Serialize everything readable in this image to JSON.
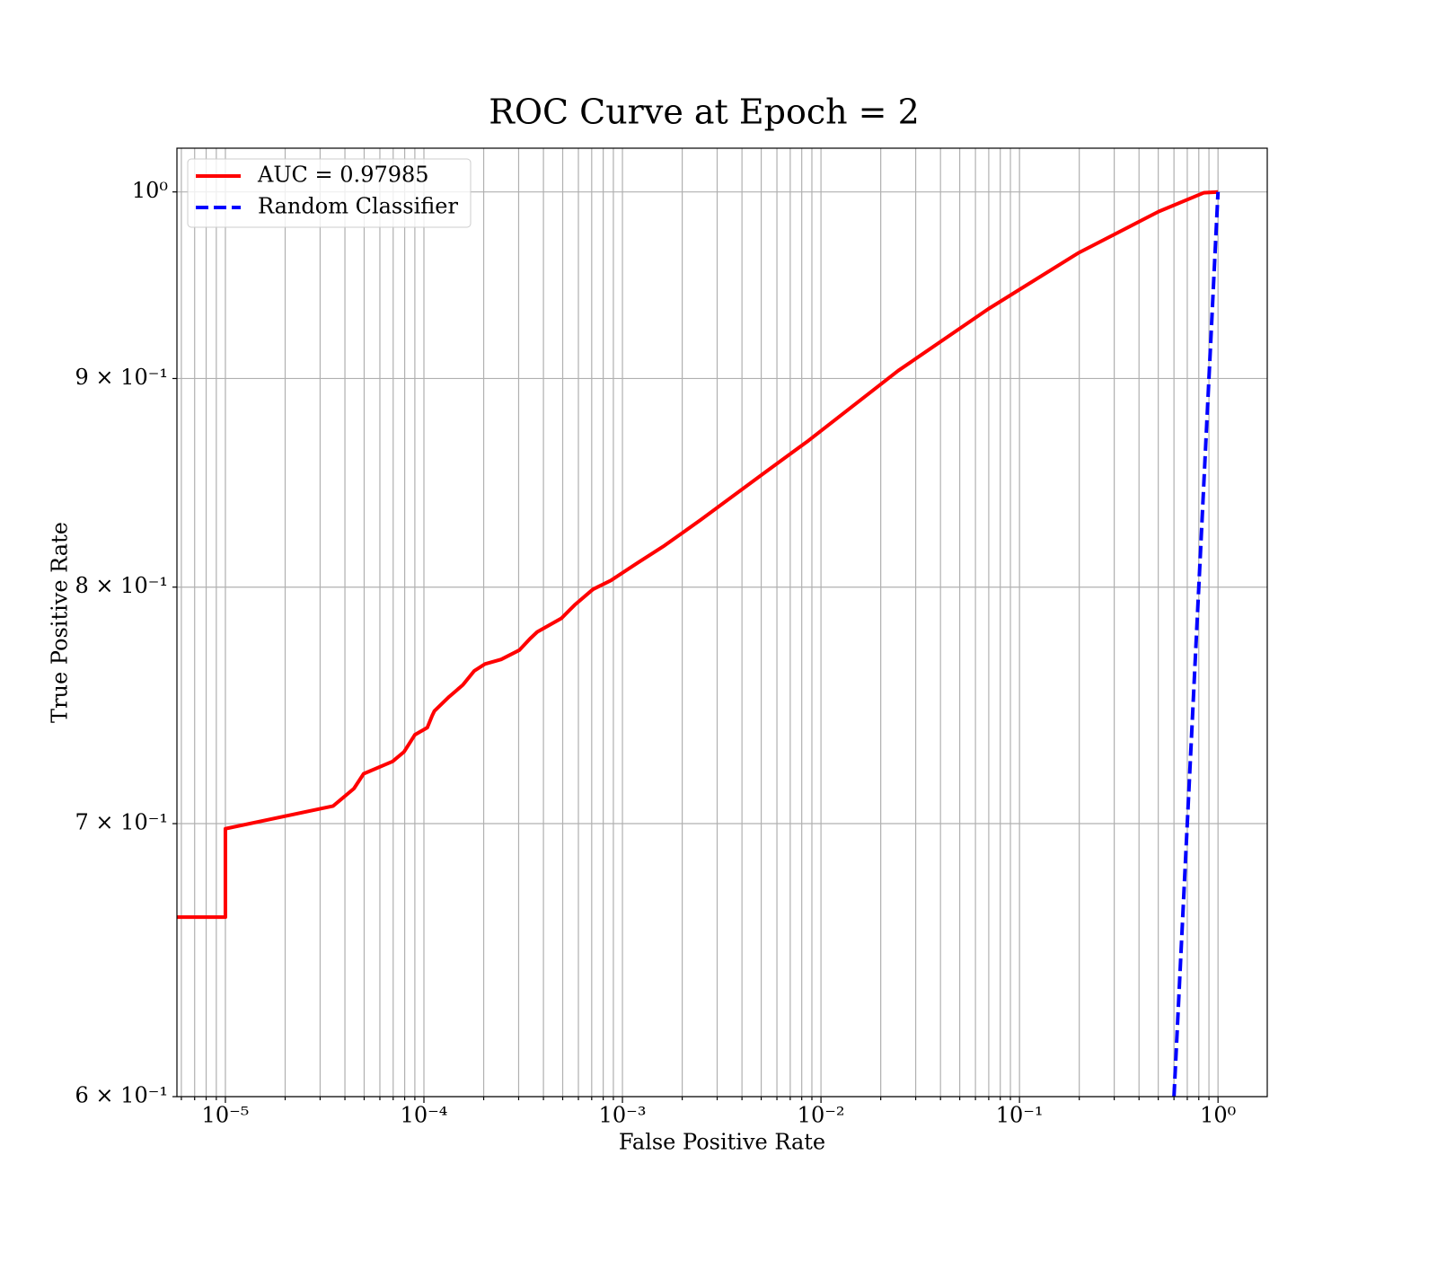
{
  "chart_data": {
    "type": "line",
    "title": "ROC Curve at Epoch = 2",
    "x_label": "False Positive Rate",
    "y_label": "True Positive Rate",
    "xscale": "log",
    "yscale": "log",
    "grid": true,
    "legend": "upper left",
    "xlim": [
      5.7e-06,
      1.77
    ],
    "ylim": [
      0.6,
      1.025
    ],
    "xticks": [
      {
        "value": 1e-05,
        "label": "10⁻⁵"
      },
      {
        "value": 0.0001,
        "label": "10⁻⁴"
      },
      {
        "value": 0.001,
        "label": "10⁻³"
      },
      {
        "value": 0.01,
        "label": "10⁻²"
      },
      {
        "value": 0.1,
        "label": "10⁻¹"
      },
      {
        "value": 1,
        "label": "10⁰"
      }
    ],
    "xminorticks": [
      6e-06,
      7e-06,
      8e-06,
      9e-06,
      2e-05,
      3e-05,
      4e-05,
      5e-05,
      6e-05,
      7e-05,
      8e-05,
      9e-05,
      0.0002,
      0.0003,
      0.0004,
      0.0005,
      0.0006,
      0.0007,
      0.0008,
      0.0009,
      0.002,
      0.003,
      0.004,
      0.005,
      0.006,
      0.007,
      0.008,
      0.009,
      0.02,
      0.03,
      0.04,
      0.05,
      0.06,
      0.07,
      0.08,
      0.09,
      0.2,
      0.3,
      0.4,
      0.5,
      0.6,
      0.7,
      0.8,
      0.9
    ],
    "yticks": [
      {
        "value": 0.6,
        "label": "6 × 10⁻¹"
      },
      {
        "value": 0.7,
        "label": "7 × 10⁻¹"
      },
      {
        "value": 0.8,
        "label": "8 × 10⁻¹"
      },
      {
        "value": 0.9,
        "label": "9 × 10⁻¹"
      },
      {
        "value": 1,
        "label": "10⁰"
      }
    ],
    "series": [
      {
        "name": "AUC = 0.97985",
        "color": "#ff0000",
        "dash": "solid",
        "x": [
          5.7e-06,
          1e-05,
          1e-05,
          3.49e-05,
          4.44e-05,
          4.97e-05,
          6.95e-05,
          7.95e-05,
          9e-05,
          0.000104,
          0.00011,
          0.000113,
          0.000134,
          0.000157,
          0.000179,
          0.000203,
          0.000245,
          0.000302,
          0.000342,
          0.000372,
          0.000492,
          0.000575,
          0.00071,
          0.000874,
          0.00119,
          0.00163,
          0.00248,
          0.00513,
          0.00865,
          0.0245,
          0.0695,
          0.197,
          0.503,
          0.847,
          1
        ],
        "values": [
          0.664,
          0.664,
          0.698,
          0.707,
          0.714,
          0.72,
          0.725,
          0.729,
          0.736,
          0.739,
          0.744,
          0.746,
          0.752,
          0.757,
          0.763,
          0.766,
          0.768,
          0.772,
          0.777,
          0.78,
          0.786,
          0.792,
          0.799,
          0.803,
          0.811,
          0.819,
          0.831,
          0.853,
          0.869,
          0.904,
          0.936,
          0.966,
          0.989,
          0.9995,
          1
        ]
      },
      {
        "name": "Random Classifier",
        "color": "#0000ff",
        "dash": "dashed",
        "x": [
          0.6,
          1
        ],
        "values": [
          0.6,
          1
        ]
      }
    ]
  }
}
